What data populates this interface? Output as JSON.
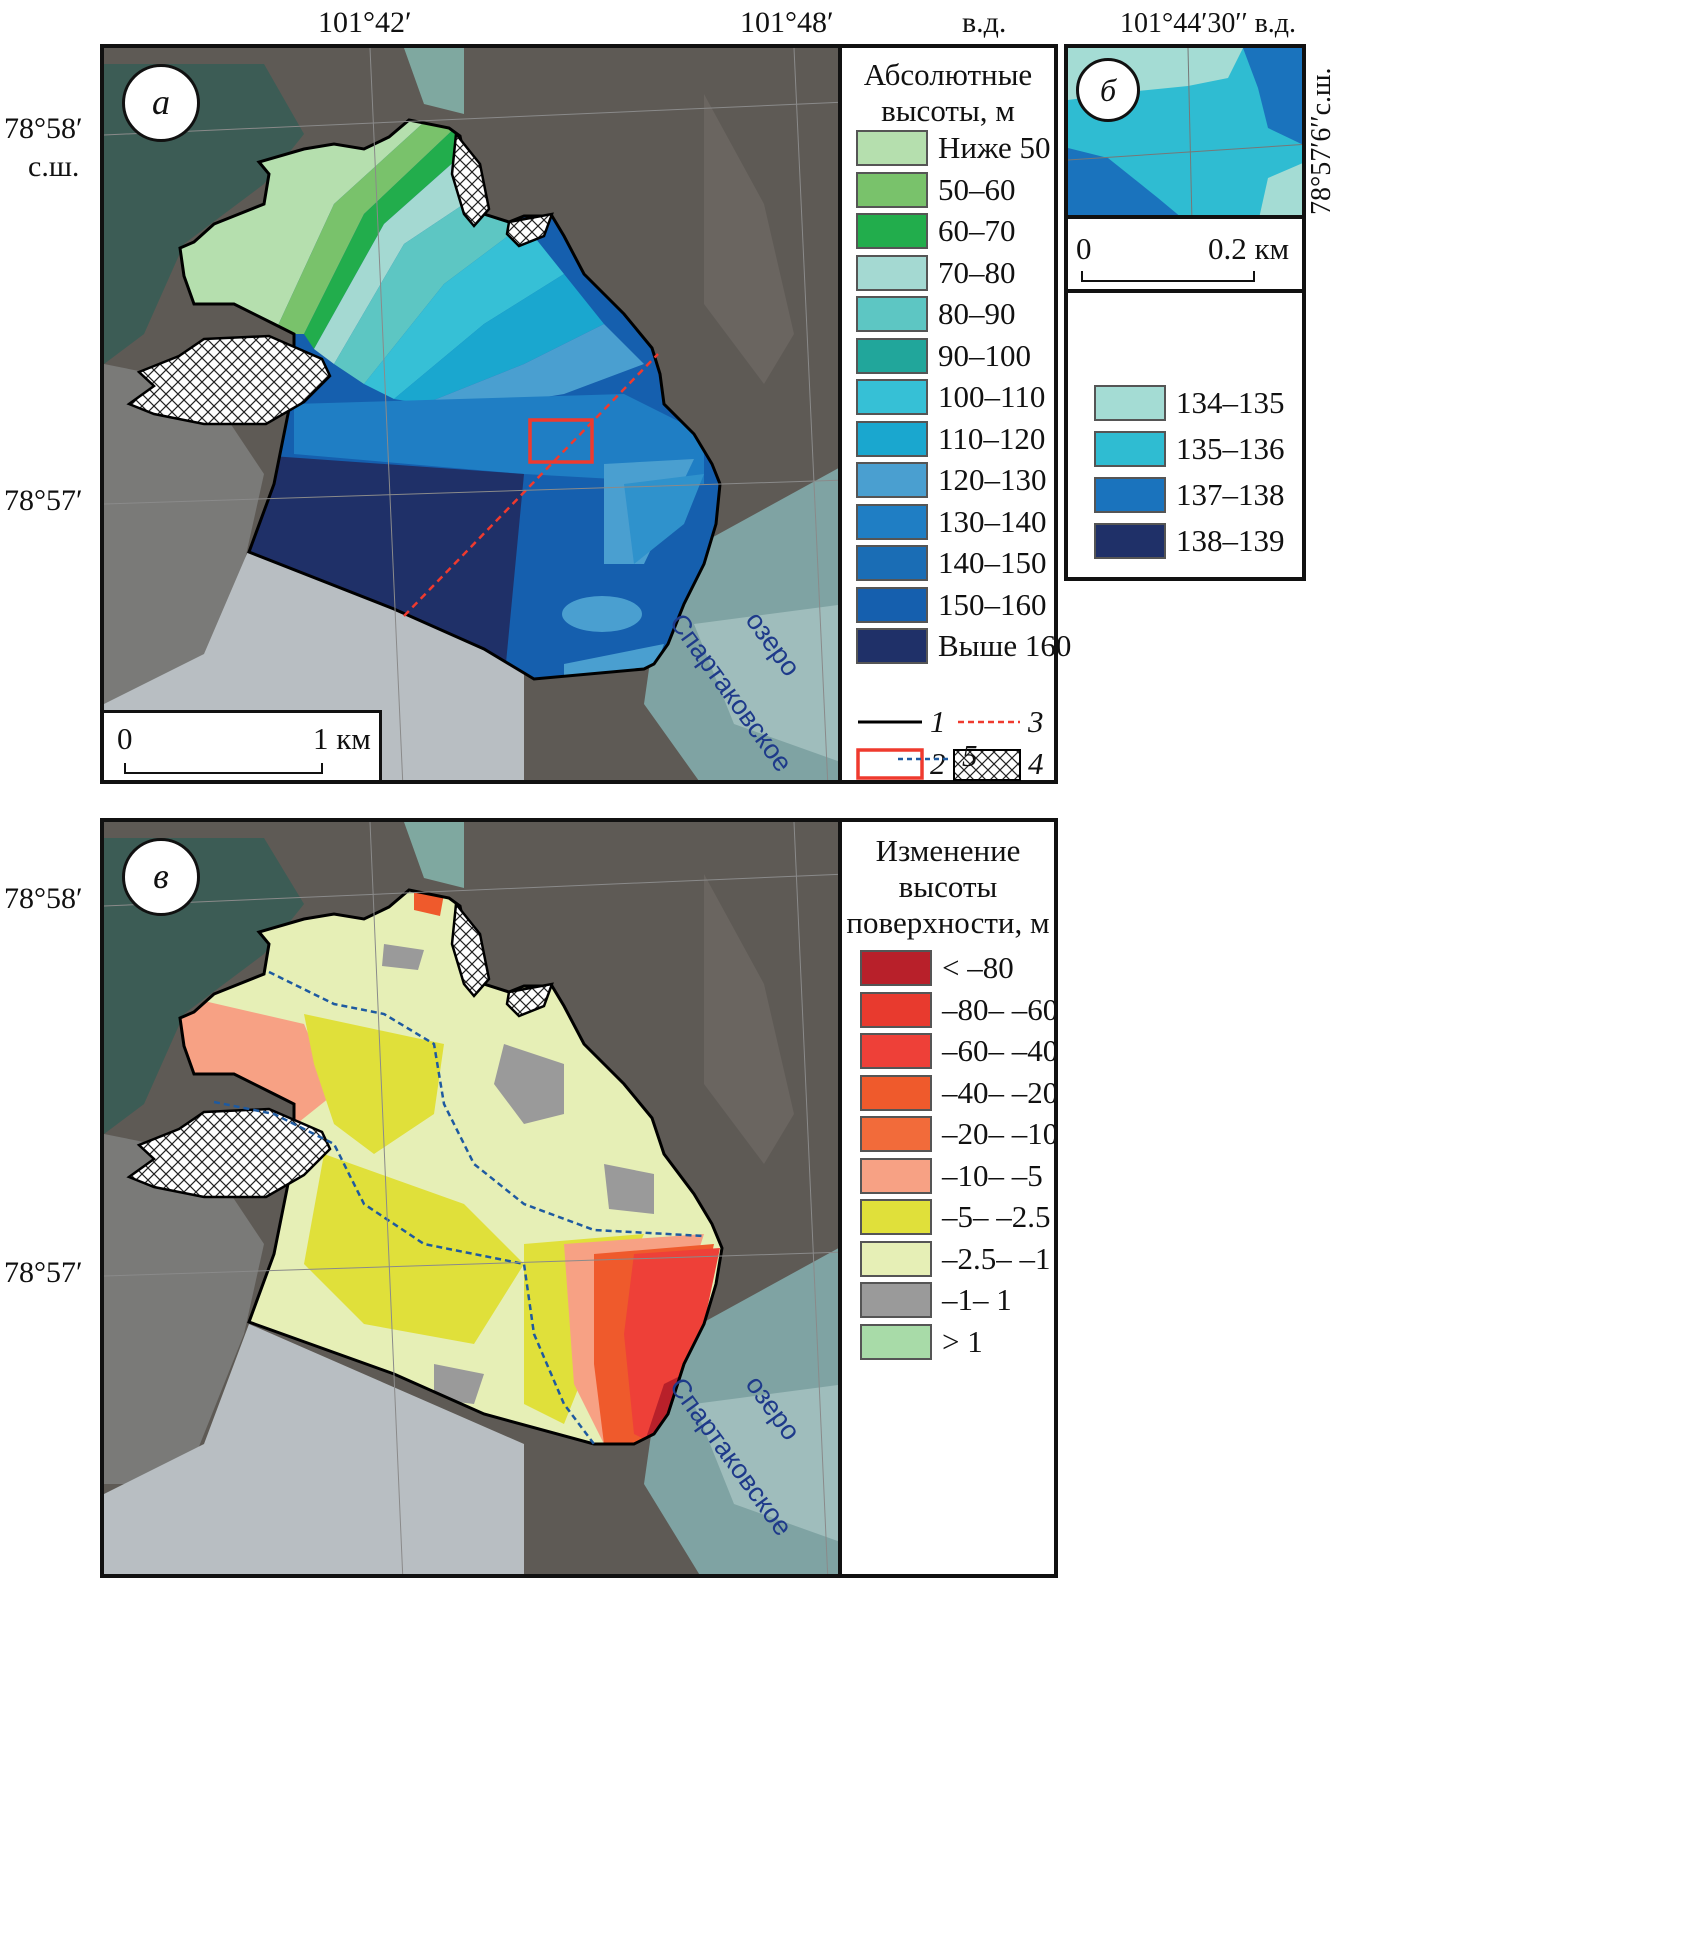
{
  "coords": {
    "top_lon_1": "101°42′",
    "top_lon_2": "101°48′",
    "top_lon_unit": "в.д.",
    "lat_1": "78°58′",
    "lat_unit": "с.ш.",
    "lat_2": "78°57′",
    "lat_3": "78°58′",
    "lat_4": "78°57′",
    "inset_lon": "101°44′30′′ в.д.",
    "inset_lat": "78°57′6′′с.ш."
  },
  "panel_a": {
    "letter": "а",
    "lake_line1": "озеро",
    "lake_line2": "Спартаковское",
    "scale_zero": "0",
    "scale_end": "1 км"
  },
  "legend_a": {
    "title_line1": "Абсолютные",
    "title_line2": "высоты, м",
    "classes": [
      {
        "label": "Ниже 50",
        "color": "#b5dfae"
      },
      {
        "label": "50–60",
        "color": "#79c26b"
      },
      {
        "label": "60–70",
        "color": "#22ad4c"
      },
      {
        "label": "70–80",
        "color": "#a4d9d2"
      },
      {
        "label": "80–90",
        "color": "#5dc6c3"
      },
      {
        "label": "90–100",
        "color": "#21a69b"
      },
      {
        "label": "100–110",
        "color": "#36c0d6"
      },
      {
        "label": "110–120",
        "color": "#1aa7cf"
      },
      {
        "label": "120–130",
        "color": "#4a9fd0"
      },
      {
        "label": "130–140",
        "color": "#1f7ec4"
      },
      {
        "label": "140–150",
        "color": "#1a6db5"
      },
      {
        "label": "150–160",
        "color": "#155fae"
      },
      {
        "label": "Выше 160",
        "color": "#1f3068"
      }
    ],
    "sym_1": "1",
    "sym_2": "2",
    "sym_3": "3",
    "sym_4": "4",
    "sym_5": "5"
  },
  "panel_b": {
    "letter": "б",
    "scale_zero": "0",
    "scale_end": "0.2 км"
  },
  "legend_b": {
    "classes": [
      {
        "label": "134–135",
        "color": "#a4dcd4"
      },
      {
        "label": "135–136",
        "color": "#2fbcd2"
      },
      {
        "label": "137–138",
        "color": "#1a73bd"
      },
      {
        "label": "138–139",
        "color": "#1f3068"
      }
    ]
  },
  "panel_v": {
    "letter": "в",
    "lake_line1": "озеро",
    "lake_line2": "Спартаковское"
  },
  "legend_v": {
    "title_line1": "Изменение",
    "title_line2": "высоты",
    "title_line3": "поверхности, м",
    "classes": [
      {
        "label": "< –80",
        "color": "#b8202a"
      },
      {
        "label": "–80– –60",
        "color": "#e83a2e"
      },
      {
        "label": "–60– –40",
        "color": "#ee4038"
      },
      {
        "label": "–40– –20",
        "color": "#ef5a2c"
      },
      {
        "label": "–20– –10",
        "color": "#f26b3a"
      },
      {
        "label": "–10– –5",
        "color": "#f7a184"
      },
      {
        "label": "–5– –2.5",
        "color": "#e0e03a"
      },
      {
        "label": "–2.5– –1",
        "color": "#e6efb6"
      },
      {
        "label": "–1– 1",
        "color": "#9a9a9a"
      },
      {
        "label": "> 1",
        "color": "#a8dba8"
      }
    ]
  }
}
